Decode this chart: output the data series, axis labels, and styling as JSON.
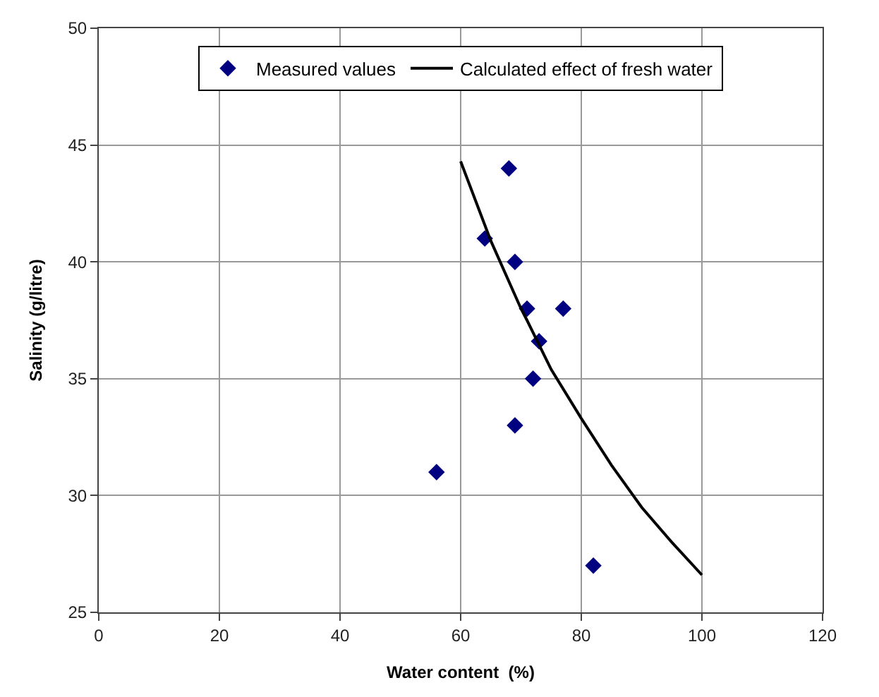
{
  "chart_data": {
    "type": "scatter",
    "xlabel": "Water content  (%)",
    "ylabel": "Salinity (g/litre)",
    "xlim": [
      0,
      120
    ],
    "xticks": [
      0,
      20,
      40,
      60,
      80,
      100,
      120
    ],
    "ylim": [
      25,
      50
    ],
    "yticks": [
      25,
      30,
      35,
      40,
      45,
      50
    ],
    "grid": true,
    "legend": "top",
    "series": [
      {
        "name": "Measured values",
        "marker": "diamond",
        "color": "#000080",
        "x": [
          68,
          64,
          69,
          71,
          77,
          73,
          72,
          69,
          56,
          82
        ],
        "values": [
          44,
          41,
          40,
          38,
          38,
          36.6,
          35,
          33,
          31,
          27
        ]
      },
      {
        "name": "Calculated effect of fresh water",
        "type": "line",
        "marker": "none",
        "color": "#000000",
        "x": [
          60,
          65,
          70,
          71,
          75,
          80,
          85,
          90,
          95,
          100
        ],
        "values": [
          44.3,
          40.9,
          38.0,
          37.5,
          35.4,
          33.3,
          31.3,
          29.5,
          28.0,
          26.6
        ]
      }
    ]
  }
}
